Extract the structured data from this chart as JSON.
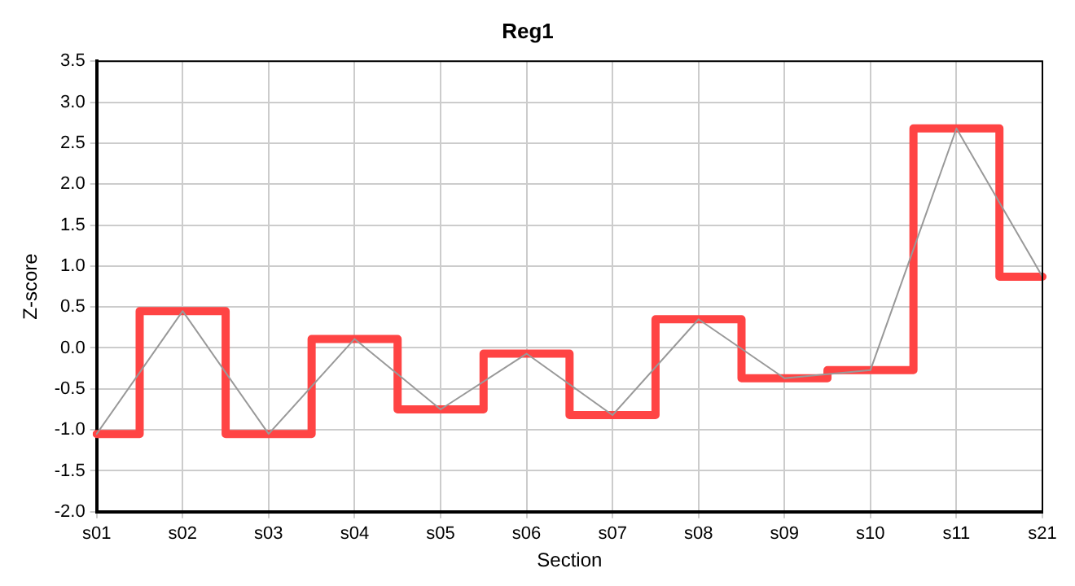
{
  "chart_data": {
    "type": "line",
    "title": "Reg1",
    "xlabel": "Section",
    "ylabel": "Z-score",
    "categories": [
      "s01",
      "s02",
      "s03",
      "s04",
      "s05",
      "s06",
      "s07",
      "s08",
      "s09",
      "s10",
      "s11",
      "s21"
    ],
    "series": [
      {
        "type": "line",
        "color": "#999999",
        "values": [
          -1.05,
          0.45,
          -1.05,
          0.11,
          -0.75,
          -0.07,
          -0.82,
          0.35,
          -0.37,
          -0.27,
          2.68,
          0.87
        ]
      },
      {
        "type": "step",
        "color": "#ff4444",
        "values": [
          -1.05,
          0.45,
          -1.05,
          0.11,
          -0.75,
          -0.07,
          -0.82,
          0.35,
          -0.37,
          -0.27,
          2.68,
          0.87
        ]
      }
    ],
    "ylim": [
      -2,
      3.5
    ],
    "yticks": [
      {
        "value": -2,
        "label": "-2.0"
      },
      {
        "value": -1.5,
        "label": "-1.5"
      },
      {
        "value": -1,
        "label": "-1.0"
      },
      {
        "value": -0.5,
        "label": "-0.5"
      },
      {
        "value": 0,
        "label": "0.0"
      },
      {
        "value": 0.5,
        "label": "0.5"
      },
      {
        "value": 1,
        "label": "1.0"
      },
      {
        "value": 1.5,
        "label": "1.5"
      },
      {
        "value": 2,
        "label": "2.0"
      },
      {
        "value": 2.5,
        "label": "2.5"
      },
      {
        "value": 3,
        "label": "3.0"
      },
      {
        "value": 3.5,
        "label": "3.5"
      }
    ],
    "grid": true,
    "legend": false,
    "marker": "none",
    "line_style": "solid"
  }
}
